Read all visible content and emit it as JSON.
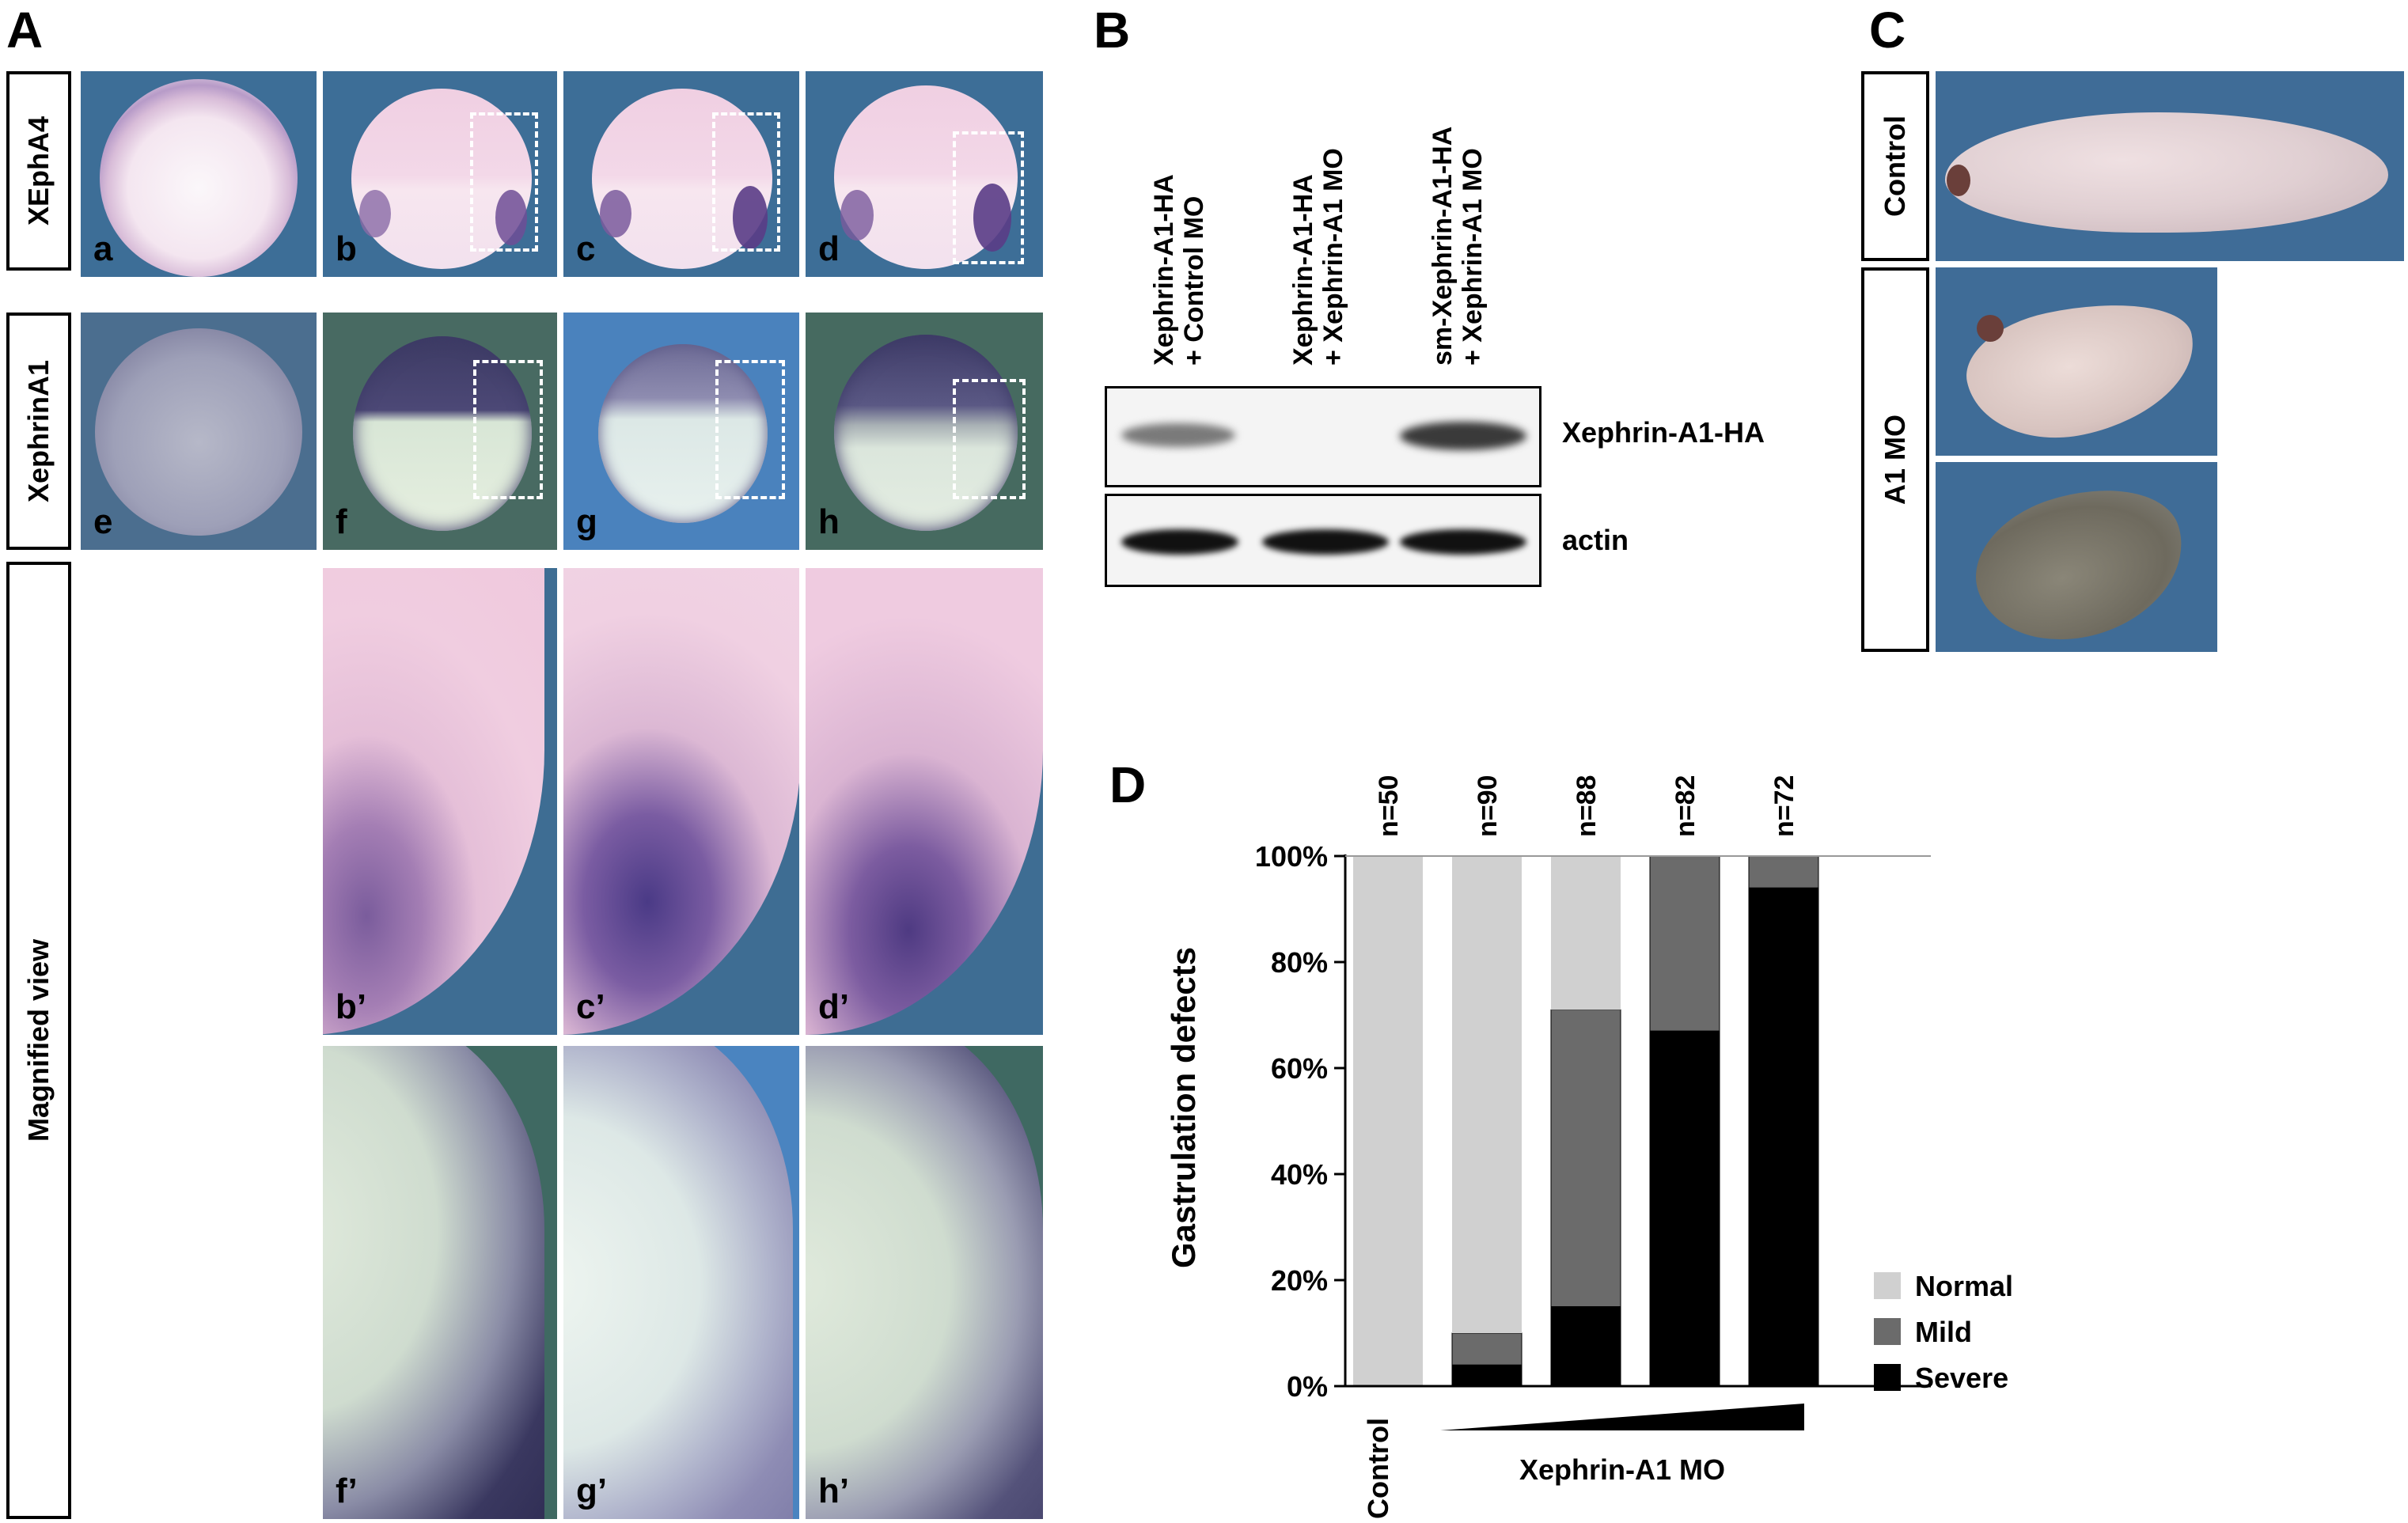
{
  "panels": {
    "A": {
      "label": "A",
      "row_labels": [
        "XEphA4",
        "XephrinA1",
        "Magnified view"
      ],
      "image_letters": [
        "a",
        "b",
        "c",
        "d",
        "e",
        "f",
        "g",
        "h",
        "b’",
        "c’",
        "d’",
        "f’",
        "g’",
        "h’"
      ]
    },
    "B": {
      "label": "B",
      "lanes": [
        "Xephrin-A1-HA",
        "+ Control MO",
        "Xephrin-A1-HA",
        "+ Xephrin-A1 MO",
        "sm-Xephrin-A1-HA",
        "+ Xephrin-A1 MO"
      ],
      "blot_labels": [
        "Xephrin-A1-HA",
        "actin"
      ]
    },
    "C": {
      "label": "C",
      "row_labels": [
        "Control",
        "A1 MO"
      ]
    },
    "D": {
      "label": "D"
    }
  },
  "colors": {
    "normal": "#d0d0d0",
    "mild": "#6b6b6b",
    "severe": "#000000",
    "photo_blue": "#3f6f98",
    "photo_green": "#3f6a63"
  },
  "chart_data": {
    "type": "bar",
    "stacked": true,
    "categories": [
      "Control",
      "",
      "",
      "",
      ""
    ],
    "group_label": "Xephrin-A1 MO",
    "counts": [
      "n=50",
      "n=90",
      "n=88",
      "n=82",
      "n=72"
    ],
    "series": [
      {
        "name": "Severe",
        "values": [
          0,
          4,
          15,
          67,
          94
        ]
      },
      {
        "name": "Mild",
        "values": [
          0,
          6,
          56,
          33,
          6
        ]
      },
      {
        "name": "Normal",
        "values": [
          100,
          90,
          29,
          0,
          0
        ]
      }
    ],
    "ylabel": "Gastrulation defects",
    "ylim": [
      0,
      100
    ],
    "yticks": [
      "0%",
      "20%",
      "40%",
      "60%",
      "80%",
      "100%"
    ],
    "legend_position": "right"
  }
}
